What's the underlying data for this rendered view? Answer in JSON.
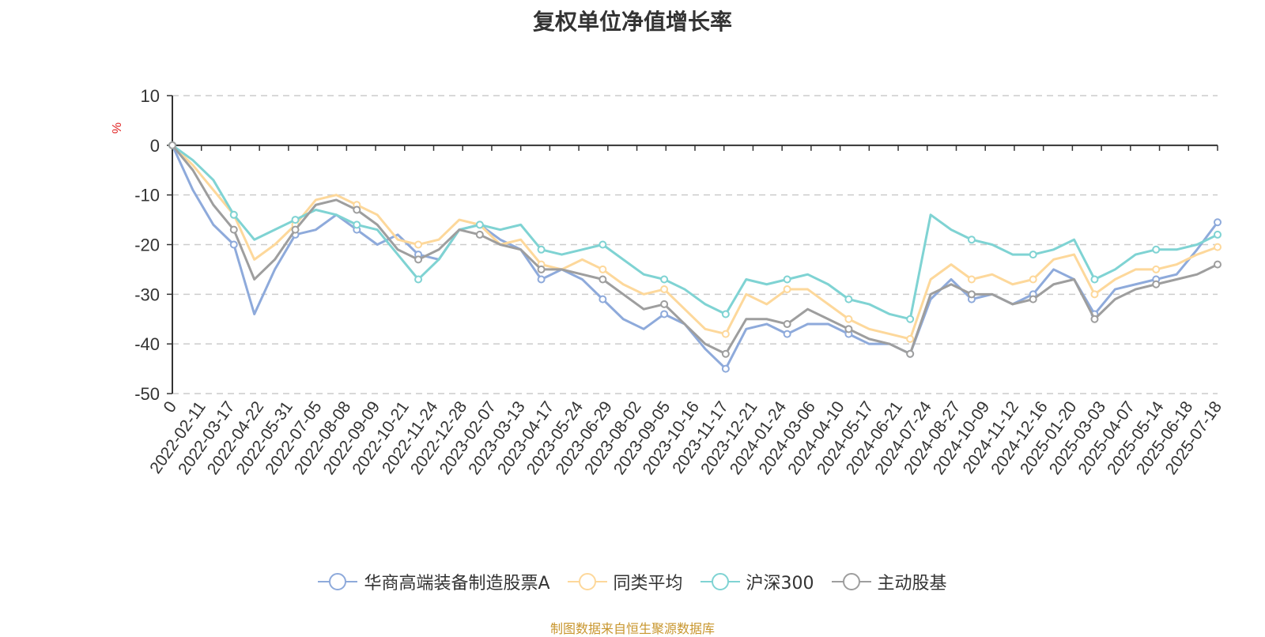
{
  "chart_data": {
    "type": "line",
    "title": "复权单位净值增长率",
    "ylabel": "%",
    "ylim": [
      -50,
      10
    ],
    "yticks": [
      "10",
      "0",
      "-10",
      "-20",
      "-30",
      "-40",
      "-50"
    ],
    "x_tick_labels": [
      "0",
      "2022-02-11",
      "2022-03-17",
      "2022-04-22",
      "2022-05-31",
      "2022-07-05",
      "2022-08-08",
      "2022-09-09",
      "2022-10-21",
      "2022-11-24",
      "2022-12-28",
      "2023-02-07",
      "2023-03-13",
      "2023-04-17",
      "2023-05-24",
      "2023-06-29",
      "2023-08-02",
      "2023-09-05",
      "2023-10-16",
      "2023-11-17",
      "2023-12-21",
      "2024-01-24",
      "2024-03-06",
      "2024-04-10",
      "2024-05-17",
      "2024-06-21",
      "2024-07-24",
      "2024-08-27",
      "2024-10-09",
      "2024-11-12",
      "2024-12-16",
      "2025-01-20",
      "2025-03-03",
      "2025-04-07",
      "2025-05-14",
      "2025-06-18",
      "2025-07-18"
    ],
    "grid": true,
    "legend_position": "bottom",
    "series": [
      {
        "name": "华商高端装备制造股票A",
        "color": "#8eaadb",
        "values": [
          0,
          -9,
          -16,
          -20,
          -34,
          -25,
          -18,
          -17,
          -14,
          -17,
          -20,
          -18,
          -22,
          -23,
          -17,
          -16,
          -19,
          -21,
          -27,
          -25,
          -27,
          -31,
          -35,
          -37,
          -34,
          -36,
          -41,
          -45,
          -37,
          -36,
          -38,
          -36,
          -36,
          -38,
          -40,
          -40,
          -42,
          -31,
          -27,
          -31,
          -30,
          -32,
          -30,
          -25,
          -27,
          -34,
          -29,
          -28,
          -27,
          -26,
          -21,
          -15.5
        ]
      },
      {
        "name": "同类平均",
        "color": "#fdd89b",
        "values": [
          0,
          -4,
          -9,
          -14,
          -23,
          -20,
          -16,
          -11,
          -10,
          -12,
          -14,
          -19,
          -20,
          -19,
          -15,
          -16,
          -20,
          -19,
          -24,
          -25,
          -23,
          -25,
          -28,
          -30,
          -29,
          -33,
          -37,
          -38,
          -30,
          -32,
          -29,
          -29,
          -32,
          -35,
          -37,
          -38,
          -39,
          -27,
          -24,
          -27,
          -26,
          -28,
          -27,
          -23,
          -22,
          -30,
          -27,
          -25,
          -25,
          -24,
          -22,
          -20.5
        ]
      },
      {
        "name": "沪深300",
        "color": "#7fd3d3",
        "values": [
          0,
          -3,
          -7,
          -14,
          -19,
          -17,
          -15,
          -13,
          -14,
          -16,
          -17,
          -22,
          -27,
          -23,
          -17,
          -16,
          -17,
          -16,
          -21,
          -22,
          -21,
          -20,
          -23,
          -26,
          -27,
          -29,
          -32,
          -34,
          -27,
          -28,
          -27,
          -26,
          -28,
          -31,
          -32,
          -34,
          -35,
          -14,
          -17,
          -19,
          -20,
          -22,
          -22,
          -21,
          -19,
          -27,
          -25,
          -22,
          -21,
          -21,
          -20,
          -18
        ]
      },
      {
        "name": "主动股基",
        "color": "#9e9e9e",
        "values": [
          0,
          -5,
          -12,
          -17,
          -27,
          -23,
          -17,
          -12,
          -11,
          -13,
          -16,
          -21,
          -23,
          -21,
          -17,
          -18,
          -20,
          -21,
          -25,
          -25,
          -26,
          -27,
          -30,
          -33,
          -32,
          -36,
          -40,
          -42,
          -35,
          -35,
          -36,
          -33,
          -35,
          -37,
          -39,
          -40,
          -42,
          -30,
          -28,
          -30,
          -30,
          -32,
          -31,
          -28,
          -27,
          -35,
          -31,
          -29,
          -28,
          -27,
          -26,
          -24
        ]
      }
    ]
  },
  "source_note": "制图数据来自恒生聚源数据库"
}
